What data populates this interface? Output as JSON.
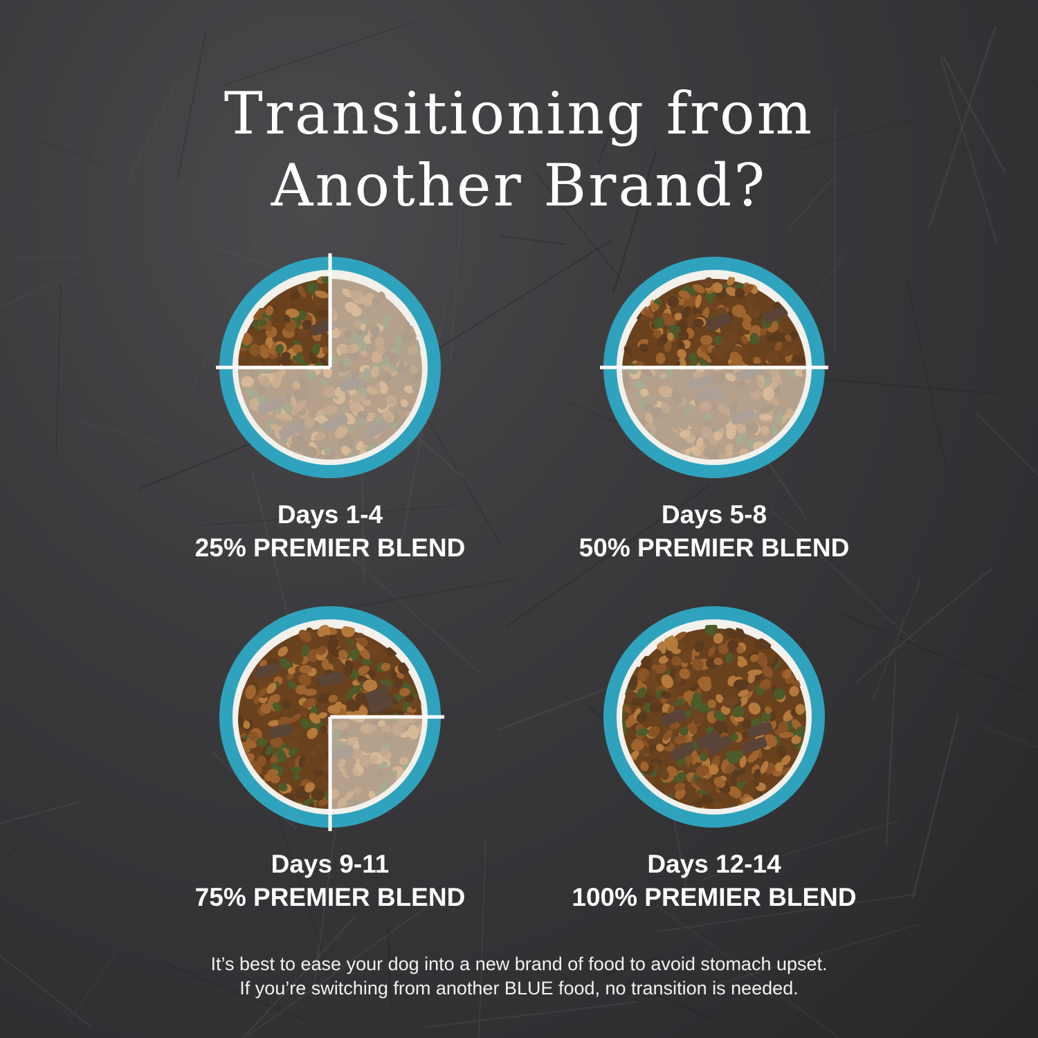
{
  "title": {
    "line1": "Transitioning from",
    "line2": "Another Brand?"
  },
  "colors": {
    "ring": "#2fa3bd",
    "background": "#37373a",
    "text": "#ffffff"
  },
  "steps": [
    {
      "days": "Days 1-4",
      "label": "25% PREMIER BLEND",
      "premier_percent": 25
    },
    {
      "days": "Days 5-8",
      "label": "50% PREMIER BLEND",
      "premier_percent": 50
    },
    {
      "days": "Days 9-11",
      "label": "75% PREMIER BLEND",
      "premier_percent": 75
    },
    {
      "days": "Days 12-14",
      "label": "100% PREMIER BLEND",
      "premier_percent": 100
    }
  ],
  "footer": {
    "line1": "It’s best to ease your dog into a new brand of food to avoid stomach upset.",
    "line2": "If you’re switching from another BLUE food, no transition is needed."
  }
}
